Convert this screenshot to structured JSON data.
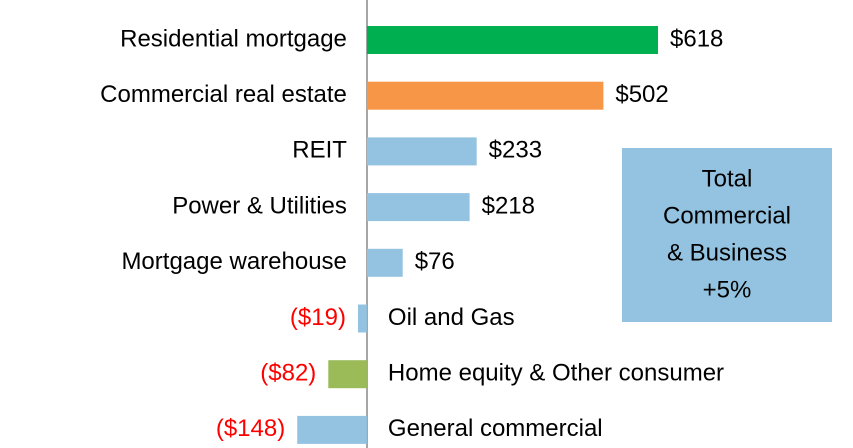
{
  "chart_data": {
    "type": "bar",
    "orientation": "horizontal",
    "categories": [
      "Residential mortgage",
      "Commercial real estate",
      "REIT",
      "Power & Utilities",
      "Mortgage warehouse",
      "Oil and Gas",
      "Home equity & Other consumer",
      "General commercial"
    ],
    "values": [
      618,
      502,
      233,
      218,
      76,
      -19,
      -82,
      -148
    ],
    "value_labels": [
      "$618",
      "$502",
      "$233",
      "$218",
      "$76",
      "($19)",
      "($82)",
      "($148)"
    ],
    "colors": [
      "#00b050",
      "#f79646",
      "#93c3e0",
      "#93c3e0",
      "#93c3e0",
      "#93c3e0",
      "#9bbb59",
      "#93c3e0"
    ],
    "negative_label_color": "#ff0000",
    "xlim": [
      -779,
      1032
    ],
    "annotation": {
      "lines": [
        "Total",
        "Commercial",
        "& Business",
        "+5%"
      ],
      "color": "#93c3e0"
    }
  }
}
